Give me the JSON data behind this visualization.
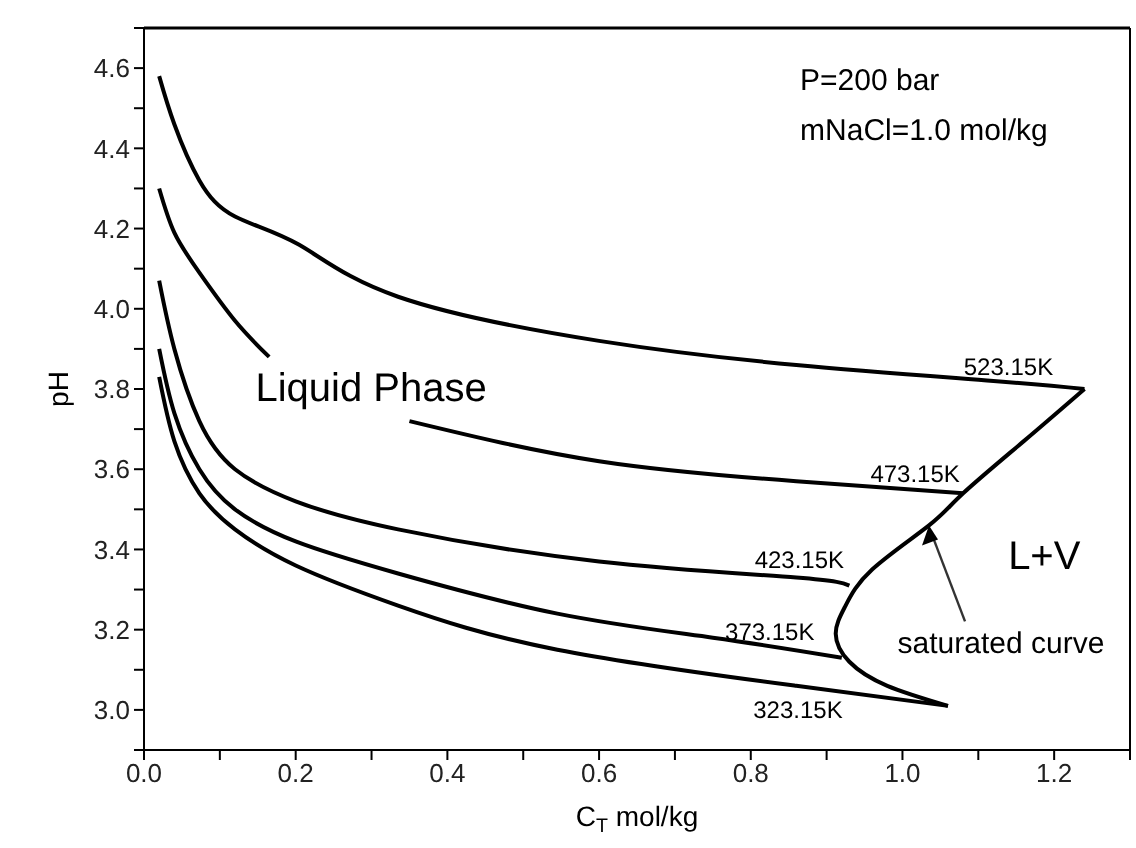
{
  "chart_data": {
    "type": "line",
    "xlabel": "C$_{T}$ mol/kg",
    "ylabel": "pH",
    "xlim": [
      0,
      1.3
    ],
    "ylim": [
      2.9,
      4.7
    ],
    "xticks": [
      {
        "value": 0,
        "label": "0.0"
      },
      {
        "value": 0.1,
        "label": null
      },
      0.2,
      {
        "value": 0.3,
        "label": null
      },
      0.4,
      {
        "value": 0.5,
        "label": null
      },
      0.6,
      {
        "value": 0.7,
        "label": null
      },
      0.8,
      {
        "value": 0.9,
        "label": null
      },
      {
        "value": 1.0,
        "label": "1.0"
      },
      {
        "value": 1.1,
        "label": null
      },
      1.2,
      {
        "value": 1.3,
        "label": null
      }
    ],
    "yticks": [
      {
        "value": 2.9,
        "label": null
      },
      {
        "value": 3.0,
        "label": "3.0"
      },
      {
        "value": 3.1,
        "label": null
      },
      3.2,
      {
        "value": 3.3,
        "label": null
      },
      3.4,
      {
        "value": 3.5,
        "label": null
      },
      3.6,
      {
        "value": 3.7,
        "label": null
      },
      3.8,
      {
        "value": 3.9,
        "label": null
      },
      {
        "value": 4.0,
        "label": "4.0"
      },
      {
        "value": 4.1,
        "label": null
      },
      4.2,
      {
        "value": 4.3,
        "label": null
      },
      4.4,
      {
        "value": 4.5,
        "label": null
      },
      4.6,
      {
        "value": 4.7,
        "label": null
      }
    ],
    "marker": "none",
    "line_style": "solid",
    "series": [
      {
        "name": "523.15K",
        "color": "#000000",
        "x": [
          0.02,
          0.04,
          0.073,
          0.12,
          0.204,
          0.335,
          0.6,
          0.86,
          1.12,
          1.24
        ],
        "values": [
          4.58,
          4.46,
          4.32,
          4.23,
          4.16,
          4.03,
          3.92,
          3.86,
          3.82,
          3.8
        ]
      },
      {
        "name": "473.15K",
        "color": "#000000",
        "x": [
          0.02,
          0.04,
          0.073,
          0.12,
          0.165,
          0.25,
          0.35,
          0.6,
          0.86,
          1.08
        ],
        "values": [
          4.3,
          4.19,
          4.09,
          3.97,
          3.88,
          null,
          3.72,
          3.62,
          3.57,
          3.54
        ]
      },
      {
        "name": "423.15K",
        "color": "#000000",
        "x": [
          0.02,
          0.04,
          0.073,
          0.12,
          0.2,
          0.335,
          0.6,
          0.86,
          0.93
        ],
        "values": [
          4.07,
          3.9,
          3.72,
          3.6,
          3.52,
          3.45,
          3.37,
          3.33,
          3.31
        ]
      },
      {
        "name": "373.15K",
        "color": "#000000",
        "x": [
          0.02,
          0.04,
          0.073,
          0.12,
          0.2,
          0.335,
          0.545,
          0.75,
          0.92
        ],
        "values": [
          3.9,
          3.74,
          3.6,
          3.5,
          3.42,
          3.34,
          3.24,
          3.18,
          3.13
        ]
      },
      {
        "name": "323.15K",
        "color": "#000000",
        "x": [
          0.02,
          0.04,
          0.073,
          0.12,
          0.2,
          0.335,
          0.545,
          0.86,
          1.06
        ],
        "values": [
          3.83,
          3.67,
          3.54,
          3.45,
          3.36,
          3.26,
          3.15,
          3.06,
          3.01
        ]
      },
      {
        "color": "#000000",
        "x": [
          1.06,
          0.98,
          0.93,
          0.912,
          0.925,
          0.96,
          1.035,
          1.08,
          1.16,
          1.24
        ],
        "values": [
          3.01,
          3.06,
          3.12,
          3.19,
          3.26,
          3.35,
          3.46,
          3.54,
          3.67,
          3.8
        ]
      }
    ],
    "annotations": [
      "P=200 bar",
      "mNaCl=1.0 mol/kg",
      "Liquid Phase",
      "L+V",
      {
        "text": "saturated curve",
        "x": 1.035,
        "y": 3.46
      }
    ]
  }
}
